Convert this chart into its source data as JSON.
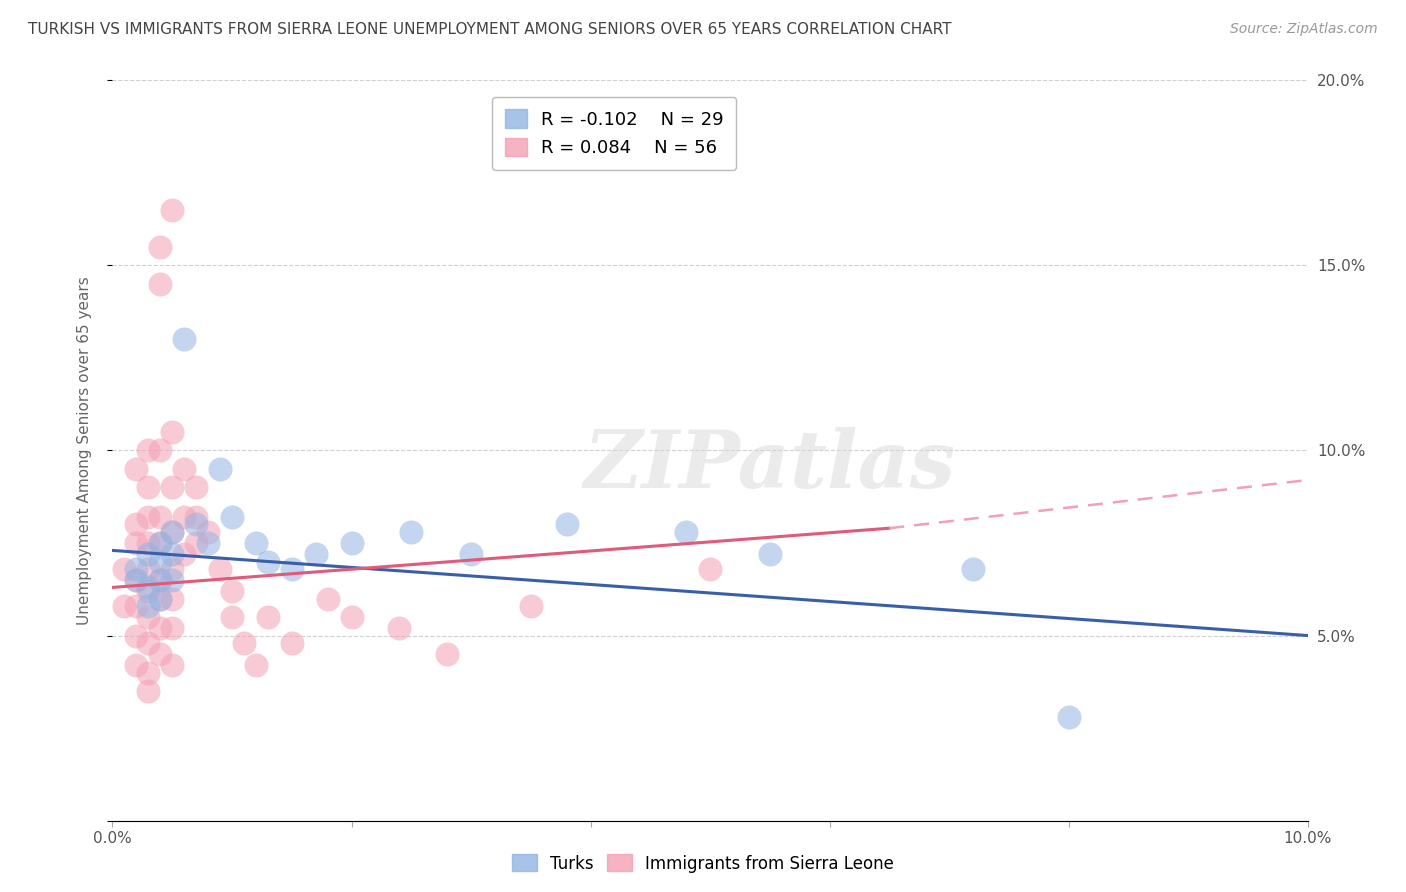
{
  "title": "TURKISH VS IMMIGRANTS FROM SIERRA LEONE UNEMPLOYMENT AMONG SENIORS OVER 65 YEARS CORRELATION CHART",
  "source": "Source: ZipAtlas.com",
  "ylabel": "Unemployment Among Seniors over 65 years",
  "xlim": [
    0.0,
    0.1
  ],
  "ylim": [
    0.0,
    0.2
  ],
  "legend_r_turks": "R = -0.102",
  "legend_n_turks": "N = 29",
  "legend_r_sierra": "R = 0.084",
  "legend_n_sierra": "N = 56",
  "turks_color": "#92b4e3",
  "sierra_color": "#f4a0b5",
  "turks_scatter": [
    [
      0.002,
      0.068
    ],
    [
      0.002,
      0.065
    ],
    [
      0.003,
      0.072
    ],
    [
      0.003,
      0.063
    ],
    [
      0.003,
      0.058
    ],
    [
      0.004,
      0.075
    ],
    [
      0.004,
      0.07
    ],
    [
      0.004,
      0.065
    ],
    [
      0.004,
      0.06
    ],
    [
      0.005,
      0.078
    ],
    [
      0.005,
      0.072
    ],
    [
      0.005,
      0.065
    ],
    [
      0.006,
      0.13
    ],
    [
      0.007,
      0.08
    ],
    [
      0.008,
      0.075
    ],
    [
      0.009,
      0.095
    ],
    [
      0.01,
      0.082
    ],
    [
      0.012,
      0.075
    ],
    [
      0.013,
      0.07
    ],
    [
      0.015,
      0.068
    ],
    [
      0.017,
      0.072
    ],
    [
      0.02,
      0.075
    ],
    [
      0.025,
      0.078
    ],
    [
      0.03,
      0.072
    ],
    [
      0.038,
      0.08
    ],
    [
      0.048,
      0.078
    ],
    [
      0.055,
      0.072
    ],
    [
      0.072,
      0.068
    ],
    [
      0.08,
      0.028
    ]
  ],
  "sierra_scatter": [
    [
      0.001,
      0.068
    ],
    [
      0.001,
      0.058
    ],
    [
      0.002,
      0.095
    ],
    [
      0.002,
      0.08
    ],
    [
      0.002,
      0.075
    ],
    [
      0.002,
      0.065
    ],
    [
      0.002,
      0.058
    ],
    [
      0.002,
      0.05
    ],
    [
      0.002,
      0.042
    ],
    [
      0.003,
      0.1
    ],
    [
      0.003,
      0.09
    ],
    [
      0.003,
      0.082
    ],
    [
      0.003,
      0.075
    ],
    [
      0.003,
      0.068
    ],
    [
      0.003,
      0.062
    ],
    [
      0.003,
      0.055
    ],
    [
      0.003,
      0.048
    ],
    [
      0.003,
      0.04
    ],
    [
      0.003,
      0.035
    ],
    [
      0.004,
      0.155
    ],
    [
      0.004,
      0.145
    ],
    [
      0.004,
      0.1
    ],
    [
      0.004,
      0.082
    ],
    [
      0.004,
      0.075
    ],
    [
      0.004,
      0.065
    ],
    [
      0.004,
      0.06
    ],
    [
      0.004,
      0.052
    ],
    [
      0.004,
      0.045
    ],
    [
      0.005,
      0.165
    ],
    [
      0.005,
      0.105
    ],
    [
      0.005,
      0.09
    ],
    [
      0.005,
      0.078
    ],
    [
      0.005,
      0.068
    ],
    [
      0.005,
      0.06
    ],
    [
      0.005,
      0.052
    ],
    [
      0.005,
      0.042
    ],
    [
      0.006,
      0.095
    ],
    [
      0.006,
      0.082
    ],
    [
      0.006,
      0.072
    ],
    [
      0.007,
      0.09
    ],
    [
      0.007,
      0.082
    ],
    [
      0.007,
      0.075
    ],
    [
      0.008,
      0.078
    ],
    [
      0.009,
      0.068
    ],
    [
      0.01,
      0.062
    ],
    [
      0.01,
      0.055
    ],
    [
      0.011,
      0.048
    ],
    [
      0.012,
      0.042
    ],
    [
      0.013,
      0.055
    ],
    [
      0.015,
      0.048
    ],
    [
      0.018,
      0.06
    ],
    [
      0.02,
      0.055
    ],
    [
      0.024,
      0.052
    ],
    [
      0.028,
      0.045
    ],
    [
      0.035,
      0.058
    ],
    [
      0.05,
      0.068
    ]
  ],
  "turks_trend_solid": {
    "x_start": 0.0,
    "y_start": 0.073,
    "x_end": 0.1,
    "y_end": 0.05
  },
  "sierra_trend_solid": {
    "x_start": 0.0,
    "y_start": 0.063,
    "x_end": 0.065,
    "y_end": 0.079
  },
  "sierra_trend_dashed": {
    "x_start": 0.065,
    "y_start": 0.079,
    "x_end": 0.1,
    "y_end": 0.092
  },
  "turks_line_color": "#3a5fa8",
  "sierra_line_color": "#e05a7a",
  "sierra_dash_color": "#f0a0b8",
  "watermark_text": "ZIPatlas",
  "background_color": "#ffffff",
  "grid_color": "#d0d0d0"
}
